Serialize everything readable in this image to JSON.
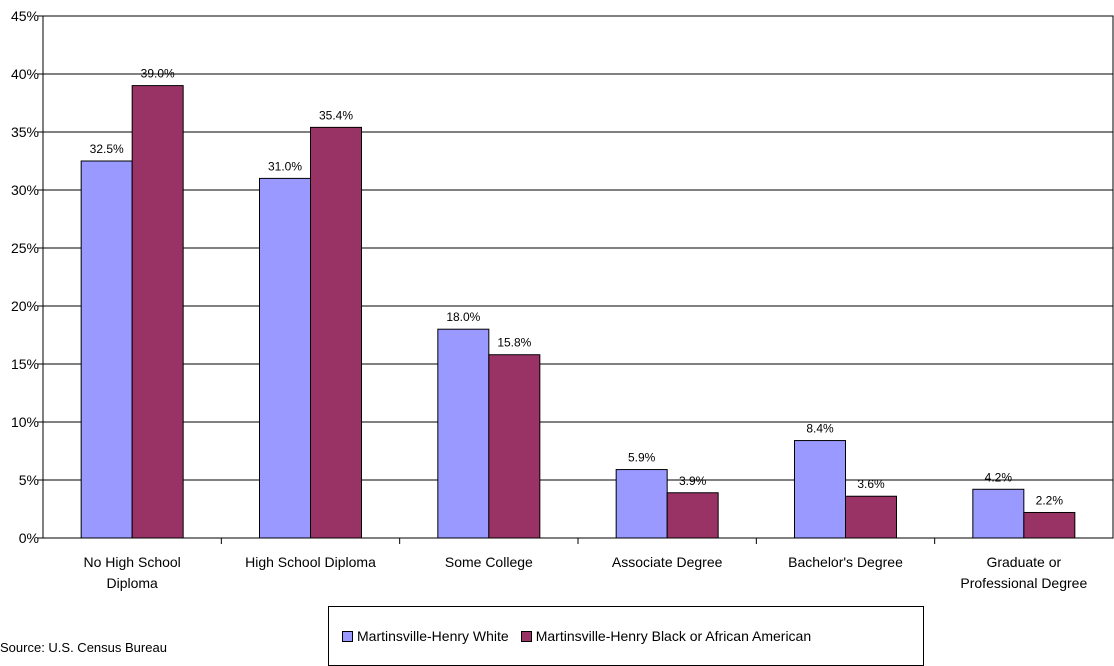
{
  "chart_data": {
    "type": "bar",
    "title": "",
    "xlabel": "",
    "ylabel": "",
    "ylim": [
      0,
      45
    ],
    "yticks": [
      "0%",
      "5%",
      "10%",
      "15%",
      "20%",
      "25%",
      "30%",
      "35%",
      "40%",
      "45%"
    ],
    "grid": true,
    "legend_position": "bottom",
    "categories": [
      [
        "No High School",
        "Diploma"
      ],
      [
        "High School Diploma"
      ],
      [
        "Some College"
      ],
      [
        "Associate Degree"
      ],
      [
        "Bachelor's Degree"
      ],
      [
        "Graduate or",
        "Professional Degree"
      ]
    ],
    "series": [
      {
        "name": "Martinsville-Henry White",
        "color": "#9999FF",
        "values": [
          32.5,
          31.0,
          18.0,
          5.9,
          8.4,
          4.2
        ],
        "labels": [
          "32.5%",
          "31.0%",
          "18.0%",
          "5.9%",
          "8.4%",
          "4.2%"
        ]
      },
      {
        "name": "Martinsville-Henry Black or African American",
        "color": "#993366",
        "values": [
          39.0,
          35.4,
          15.8,
          3.9,
          3.6,
          2.2
        ],
        "labels": [
          "39.0%",
          "35.4%",
          "15.8%",
          "3.9%",
          "3.6%",
          "2.2%"
        ]
      }
    ]
  },
  "source": "Source: U.S. Census Bureau"
}
